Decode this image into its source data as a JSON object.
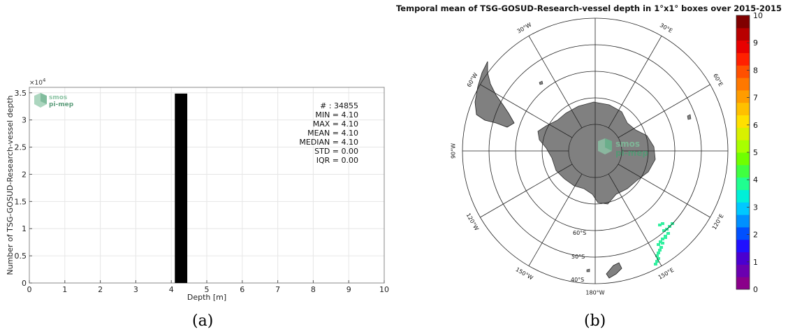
{
  "panel_a": {
    "caption": "(a)",
    "xlabel": "Depth [m]",
    "ylabel": "Number of TSG-GOSUD-Research-vessel depth",
    "exponent_label": "×10",
    "exponent_power": "4",
    "logo_line1": "smos",
    "logo_line2": "pi-mep",
    "stats": {
      "count": "# : 34855",
      "min": "MIN = 4.10",
      "max": "MAX =  4.10",
      "mean": "MEAN = 4.10",
      "median": "MEDIAN = 4.10",
      "std": "STD = 0.00",
      "iqr": "IQR = 0.00"
    }
  },
  "panel_b": {
    "caption": "(b)",
    "title": "Temporal mean of TSG-GOSUD-Research-vessel depth in 1°x1° boxes over 2015-2015",
    "logo_line1": "smos",
    "logo_line2": "pi-mep",
    "colorbar_ticks": [
      "0",
      "1",
      "2",
      "3",
      "4",
      "5",
      "6",
      "7",
      "8",
      "9",
      "10"
    ],
    "lon_labels": [
      {
        "text": "30°W",
        "deg": 330
      },
      {
        "text": "30°E",
        "deg": 30
      },
      {
        "text": "60°W",
        "deg": 300
      },
      {
        "text": "60°E",
        "deg": 60
      },
      {
        "text": "90°W",
        "deg": 270
      },
      {
        "text": "120°W",
        "deg": 240
      },
      {
        "text": "120°E",
        "deg": 120
      },
      {
        "text": "150°W",
        "deg": 210
      },
      {
        "text": "150°E",
        "deg": 150
      },
      {
        "text": "180°W",
        "deg": 180
      }
    ],
    "lat_labels": [
      "60°S",
      "50°S",
      "40°S"
    ],
    "colors": {
      "land": "#808080",
      "data": "#33f0a0"
    }
  },
  "chart_data": [
    {
      "type": "bar",
      "title": "",
      "xlabel": "Depth [m]",
      "ylabel": "Number of TSG-GOSUD-Research-vessel depth",
      "xlim": [
        0,
        10
      ],
      "ylim": [
        0,
        36000
      ],
      "xticks": [
        0,
        1,
        2,
        3,
        4,
        5,
        6,
        7,
        8,
        9,
        10
      ],
      "yticks": [
        0,
        5000,
        10000,
        15000,
        20000,
        25000,
        30000,
        35000
      ],
      "ytick_labels": [
        "0",
        "0.5",
        "1",
        "1.5",
        "2",
        "2.5",
        "3",
        "3.5"
      ],
      "bins": [
        {
          "x0": 4.1,
          "x1": 4.45,
          "count": 34855
        }
      ],
      "grid": true,
      "bar_color": "#000000"
    },
    {
      "type": "heatmap",
      "title": "Temporal mean of TSG-GOSUD-Research-vessel depth in 1°x1° boxes over 2015-2015",
      "projection": "south polar stereographic",
      "colorbar_range": [
        0,
        10
      ],
      "colorbar_ticks": [
        0,
        1,
        2,
        3,
        4,
        5,
        6,
        7,
        8,
        9,
        10
      ],
      "colormap": [
        "#8a008a",
        "#6a00b0",
        "#4a00d0",
        "#2010ff",
        "#0050ff",
        "#0090ff",
        "#00c8ff",
        "#00f0d8",
        "#20ff90",
        "#40ff40",
        "#70ff00",
        "#a8ff00",
        "#d8f000",
        "#ffe000",
        "#ffc000",
        "#ff9c00",
        "#ff7800",
        "#ff5000",
        "#ff2000",
        "#e80000",
        "#b80000",
        "#800000"
      ],
      "values": [
        {
          "lat": -54,
          "lon": 147,
          "value": 4.1
        },
        {
          "lat": -50,
          "lon": 150,
          "value": 4.1
        },
        {
          "lat": -46,
          "lon": 152,
          "value": 4.1
        },
        {
          "lat": -60,
          "lon": 140,
          "value": 4.1
        }
      ]
    }
  ]
}
